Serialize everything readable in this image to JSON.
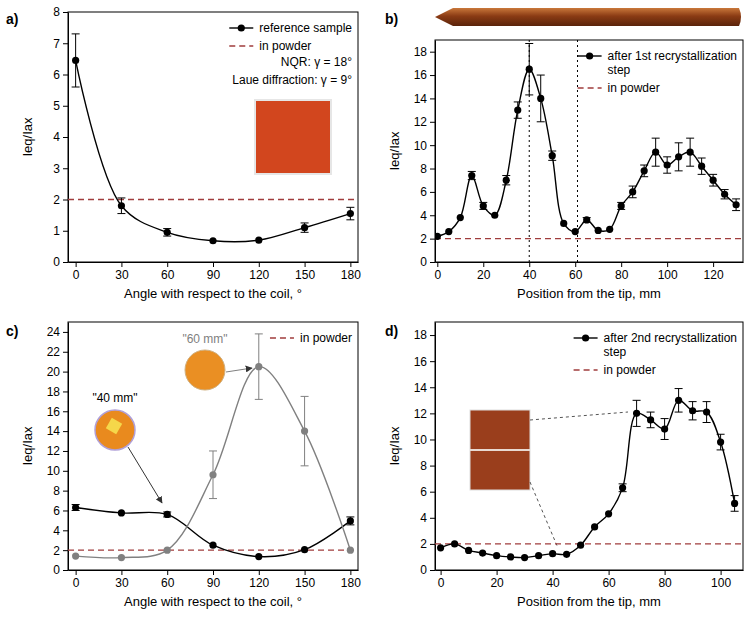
{
  "chart_data": [
    {
      "type": "line",
      "panel_label": "a)",
      "x_label": "Angle with respect to the coil, °",
      "y_label": "Ieq/Iax",
      "x": [
        0,
        30,
        60,
        90,
        120,
        150,
        180
      ],
      "series": [
        {
          "name": "reference sample",
          "color": "#000000",
          "marker": "circle",
          "values": [
            6.45,
            1.8,
            0.95,
            0.68,
            0.7,
            1.1,
            1.55
          ],
          "errors": [
            0.85,
            0.25,
            0.12,
            null,
            null,
            0.15,
            0.2
          ]
        }
      ],
      "hlines": [
        {
          "name": "in powder",
          "y": 2,
          "color": "#a03c3c",
          "line_style": "dashed"
        }
      ],
      "annotations": [
        {
          "text": "NQR:  γ = 18°"
        },
        {
          "text": "Laue diffraction:  γ = 9°"
        }
      ],
      "xlim": [
        -5,
        185
      ],
      "xticks": [
        0,
        30,
        60,
        90,
        120,
        150,
        180
      ],
      "ylim": [
        0,
        8
      ],
      "yticks": [
        0,
        1,
        2,
        3,
        4,
        5,
        6,
        7,
        8
      ],
      "legend": "top-right"
    },
    {
      "type": "line",
      "panel_label": "b)",
      "x_label": "Position from the tip, mm",
      "y_label": "Ieq/Iax",
      "x": [
        0,
        5,
        10,
        15,
        20,
        25,
        30,
        35,
        40,
        45,
        50,
        55,
        60,
        65,
        70,
        75,
        80,
        85,
        90,
        95,
        100,
        105,
        110,
        115,
        120,
        125,
        130
      ],
      "series": [
        {
          "name": "after 1st recrystallization step",
          "color": "#000000",
          "marker": "circle",
          "values": [
            2.2,
            2.6,
            3.8,
            7.4,
            4.8,
            4.0,
            7.0,
            13.0,
            16.5,
            14.0,
            9.1,
            3.3,
            2.6,
            3.6,
            2.7,
            2.8,
            4.8,
            6.0,
            7.8,
            9.4,
            8.3,
            9.0,
            9.4,
            8.2,
            7.0,
            5.8,
            4.9
          ],
          "errors": [
            null,
            null,
            null,
            0.35,
            0.3,
            null,
            0.4,
            0.7,
            2.2,
            2.0,
            0.4,
            null,
            null,
            0.2,
            null,
            null,
            0.3,
            0.5,
            0.5,
            1.2,
            0.7,
            1.2,
            1.2,
            0.7,
            0.5,
            0.4,
            0.5
          ]
        }
      ],
      "hlines": [
        {
          "name": "in powder",
          "y": 2,
          "color": "#a03c3c",
          "line_style": "dashed"
        }
      ],
      "vlines": [
        {
          "x": 40,
          "color": "#000000",
          "line_style": "dotted"
        },
        {
          "x": 61,
          "color": "#000000",
          "line_style": "dotted"
        }
      ],
      "xlim": [
        -1,
        133
      ],
      "xticks": [
        0,
        20,
        40,
        60,
        80,
        100,
        120
      ],
      "ylim": [
        0,
        19
      ],
      "yticks": [
        0,
        2,
        4,
        6,
        8,
        10,
        12,
        14,
        16,
        18
      ],
      "legend": "top-right"
    },
    {
      "type": "line",
      "panel_label": "c)",
      "x_label": "Angle with respect to the coil, °",
      "y_label": "Ieq/Iax",
      "x": [
        0,
        30,
        60,
        90,
        120,
        150,
        180
      ],
      "series": [
        {
          "color": "#000000",
          "marker": "circle",
          "values": [
            6.3,
            5.75,
            5.6,
            2.5,
            1.35,
            2.05,
            4.95
          ],
          "errors": [
            0.3,
            null,
            0.25,
            null,
            null,
            null,
            0.4
          ]
        },
        {
          "color": "#808080",
          "marker": "circle",
          "values": [
            1.4,
            1.25,
            2.0,
            9.6,
            20.5,
            14.0,
            2.0
          ],
          "errors": [
            null,
            null,
            null,
            2.4,
            3.3,
            3.5,
            null
          ]
        }
      ],
      "hlines": [
        {
          "name": "in powder",
          "y": 2,
          "color": "#a03c3c",
          "line_style": "dashed"
        }
      ],
      "annotations": [
        {
          "text": "\"40 mm\"",
          "color": "#000000"
        },
        {
          "text": "\"60 mm\"",
          "color": "#808080"
        }
      ],
      "xlim": [
        -5,
        185
      ],
      "xticks": [
        0,
        30,
        60,
        90,
        120,
        150,
        180
      ],
      "ylim": [
        0,
        25
      ],
      "yticks": [
        0,
        2,
        4,
        6,
        8,
        10,
        12,
        14,
        16,
        18,
        20,
        22,
        24
      ],
      "legend": "top-right"
    },
    {
      "type": "line",
      "panel_label": "d)",
      "x_label": "Position from the tip, mm",
      "y_label": "Ieq/Iax",
      "x": [
        0,
        5,
        10,
        15,
        20,
        25,
        30,
        35,
        40,
        45,
        50,
        55,
        60,
        65,
        70,
        75,
        80,
        85,
        90,
        95,
        100,
        105
      ],
      "series": [
        {
          "name": "after 2nd recrystallization step",
          "color": "#000000",
          "marker": "circle",
          "values": [
            1.7,
            2.0,
            1.5,
            1.3,
            1.1,
            1.0,
            0.95,
            1.1,
            1.25,
            1.2,
            1.9,
            3.3,
            4.3,
            6.3,
            12.0,
            11.5,
            10.8,
            13.0,
            12.2,
            12.1,
            9.8,
            5.1
          ],
          "errors": [
            null,
            null,
            null,
            null,
            null,
            null,
            null,
            null,
            null,
            null,
            null,
            null,
            null,
            0.3,
            1.0,
            0.6,
            0.8,
            0.9,
            0.7,
            0.8,
            0.6,
            0.6
          ]
        }
      ],
      "hlines": [
        {
          "name": "in powder",
          "y": 2,
          "color": "#a03c3c",
          "line_style": "dashed"
        }
      ],
      "xlim": [
        -2,
        108
      ],
      "xticks": [
        0,
        20,
        40,
        60,
        80,
        100
      ],
      "ylim": [
        0,
        19
      ],
      "yticks": [
        0,
        2,
        4,
        6,
        8,
        10,
        12,
        14,
        16,
        18
      ],
      "legend": "top-right"
    }
  ]
}
